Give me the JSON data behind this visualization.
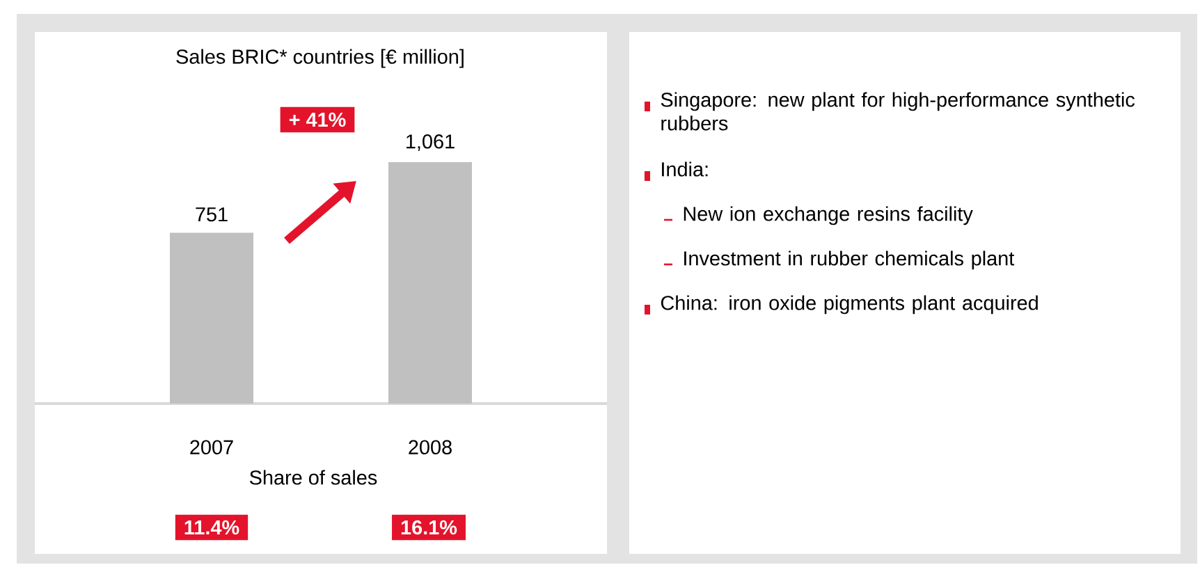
{
  "chart_data": [
    {
      "type": "bar",
      "title": "Sales BRIC* countries [€ million]",
      "categories": [
        "2007",
        "2008"
      ],
      "values": [
        751,
        1061
      ],
      "value_labels": [
        "751",
        "1,061"
      ],
      "color": "#c0c0c0",
      "ylim": [
        0,
        1700
      ],
      "annotations": [
        "+ 41%",
        "Share of sales",
        "11.4%",
        "16.1%"
      ]
    },
    {
      "type": "other",
      "annotations": [
        "Singapore: new plant for high-performance synthetic rubbers",
        "India:",
        "New ion exchange resins facility",
        "Investment in rubber chemicals plant",
        "China: iron oxide pigments plant acquired"
      ]
    }
  ]
}
